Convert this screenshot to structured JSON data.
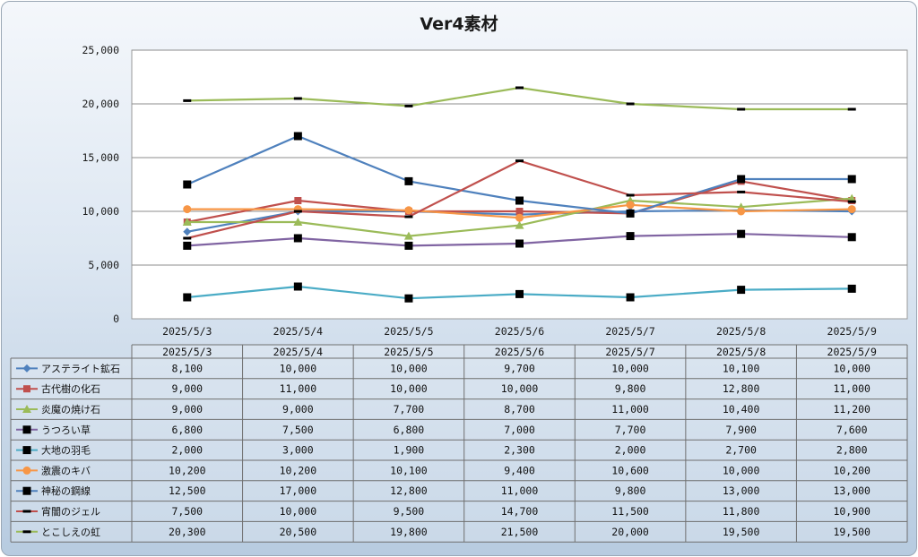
{
  "chart_data": {
    "type": "line",
    "title": "Ver4素材",
    "xlabel": "",
    "ylabel": "",
    "ylim": [
      0,
      25000
    ],
    "y_ticks": [
      0,
      5000,
      10000,
      15000,
      20000,
      25000
    ],
    "y_tick_labels": [
      "0",
      "5,000",
      "10,000",
      "15,000",
      "20,000",
      "25,000"
    ],
    "grid": "horizontal",
    "legend": "data-table-below",
    "categories": [
      "2025/5/3",
      "2025/5/4",
      "2025/5/5",
      "2025/5/6",
      "2025/5/7",
      "2025/5/8",
      "2025/5/9"
    ],
    "series": [
      {
        "name": "アステライト鉱石",
        "color": "#4f81bd",
        "marker": "diamond",
        "values": [
          8100,
          10000,
          10000,
          9700,
          10000,
          10100,
          10000
        ],
        "labels": [
          "8,100",
          "10,000",
          "10,000",
          "9,700",
          "10,000",
          "10,100",
          "10,000"
        ]
      },
      {
        "name": "古代樹の化石",
        "color": "#c0504d",
        "marker": "square",
        "values": [
          9000,
          11000,
          10000,
          10000,
          9800,
          12800,
          11000
        ],
        "labels": [
          "9,000",
          "11,000",
          "10,000",
          "10,000",
          "9,800",
          "12,800",
          "11,000"
        ]
      },
      {
        "name": "炎魔の焼け石",
        "color": "#9bbb59",
        "marker": "triangle",
        "values": [
          9000,
          9000,
          7700,
          8700,
          11000,
          10400,
          11200
        ],
        "labels": [
          "9,000",
          "9,000",
          "7,700",
          "8,700",
          "11,000",
          "10,400",
          "11,200"
        ]
      },
      {
        "name": "うつろい草",
        "color": "#8064a2",
        "marker": "blacksquare",
        "values": [
          6800,
          7500,
          6800,
          7000,
          7700,
          7900,
          7600
        ],
        "labels": [
          "6,800",
          "7,500",
          "6,800",
          "7,000",
          "7,700",
          "7,900",
          "7,600"
        ]
      },
      {
        "name": "大地の羽毛",
        "color": "#4bacc6",
        "marker": "blacksquare",
        "values": [
          2000,
          3000,
          1900,
          2300,
          2000,
          2700,
          2800
        ],
        "labels": [
          "2,000",
          "3,000",
          "1,900",
          "2,300",
          "2,000",
          "2,700",
          "2,800"
        ]
      },
      {
        "name": "激震のキバ",
        "color": "#f79646",
        "marker": "circle",
        "values": [
          10200,
          10200,
          10100,
          9400,
          10600,
          10000,
          10200
        ],
        "labels": [
          "10,200",
          "10,200",
          "10,100",
          "9,400",
          "10,600",
          "10,000",
          "10,200"
        ]
      },
      {
        "name": "神秘の鋼線",
        "color": "#4f81bd",
        "marker": "blacksquare",
        "values": [
          12500,
          17000,
          12800,
          11000,
          9800,
          13000,
          13000
        ],
        "labels": [
          "12,500",
          "17,000",
          "12,800",
          "11,000",
          "9,800",
          "13,000",
          "13,000"
        ]
      },
      {
        "name": "宵闇のジェル",
        "color": "#c0504d",
        "marker": "dash",
        "values": [
          7500,
          10000,
          9500,
          14700,
          11500,
          11800,
          10900
        ],
        "labels": [
          "7,500",
          "10,000",
          "9,500",
          "14,700",
          "11,500",
          "11,800",
          "10,900"
        ]
      },
      {
        "name": "とこしえの虹",
        "color": "#9bbb59",
        "marker": "dash",
        "values": [
          20300,
          20500,
          19800,
          21500,
          20000,
          19500,
          19500
        ],
        "labels": [
          "20,300",
          "20,500",
          "19,800",
          "21,500",
          "20,000",
          "19,500",
          "19,500"
        ]
      }
    ]
  }
}
